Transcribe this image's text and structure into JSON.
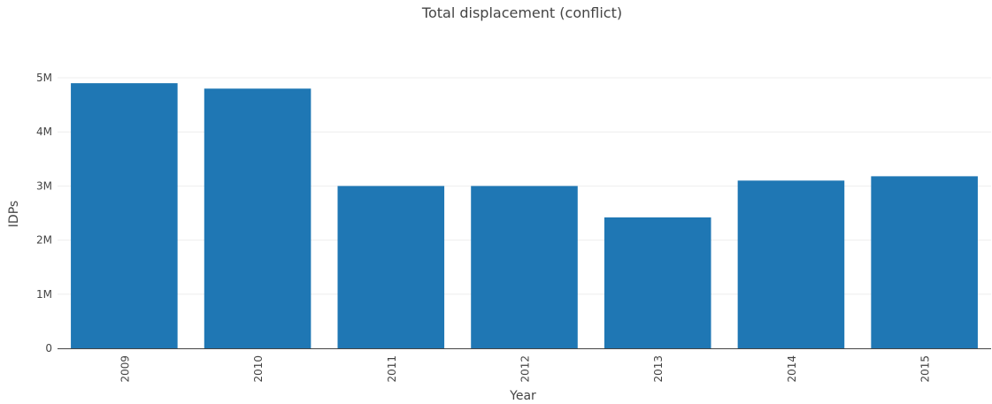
{
  "chart_data": {
    "type": "bar",
    "title": "Total displacement (conflict)",
    "xlabel": "Year",
    "ylabel": "IDPs",
    "categories": [
      "2009",
      "2010",
      "2011",
      "2012",
      "2013",
      "2014",
      "2015"
    ],
    "values": [
      4900000,
      4800000,
      3000000,
      3000000,
      2420000,
      3100000,
      3180000
    ],
    "ylim": [
      0,
      5000000
    ],
    "yticks": [
      0,
      1000000,
      2000000,
      3000000,
      4000000,
      5000000
    ],
    "ytick_labels": [
      "0",
      "1M",
      "2M",
      "3M",
      "4M",
      "5M"
    ],
    "grid": true,
    "bar_color": "#1f77b4"
  }
}
